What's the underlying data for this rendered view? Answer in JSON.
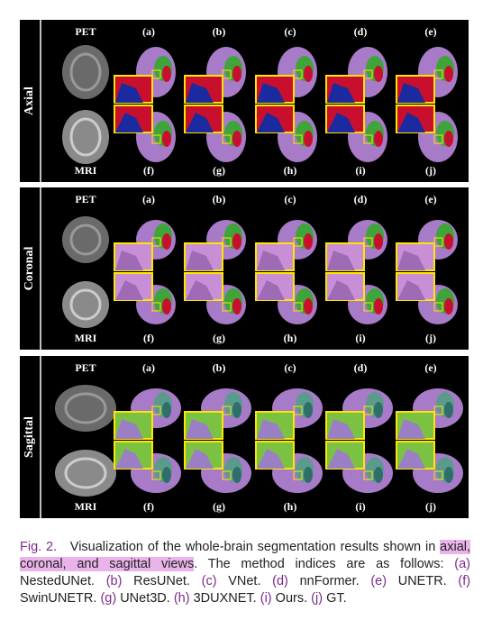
{
  "figure": {
    "panels": [
      {
        "view": "Axial",
        "top_source": "PET",
        "bottom_source": "MRI",
        "top_labels": [
          "(a)",
          "(b)",
          "(c)",
          "(d)",
          "(e)"
        ],
        "bottom_labels": [
          "(f)",
          "(g)",
          "(h)",
          "(i)",
          "(j)"
        ]
      },
      {
        "view": "Coronal",
        "top_source": "PET",
        "bottom_source": "MRI",
        "top_labels": [
          "(a)",
          "(b)",
          "(c)",
          "(d)",
          "(e)"
        ],
        "bottom_labels": [
          "(f)",
          "(g)",
          "(h)",
          "(i)",
          "(j)"
        ]
      },
      {
        "view": "Sagittal",
        "top_source": "PET",
        "bottom_source": "MRI",
        "top_labels": [
          "(a)",
          "(b)",
          "(c)",
          "(d)",
          "(e)"
        ],
        "bottom_labels": [
          "(f)",
          "(g)",
          "(h)",
          "(i)",
          "(j)"
        ]
      }
    ],
    "caption": {
      "label": "Fig. 2.",
      "text_before": "Visualization of the whole-brain segmentation results shown in",
      "highlight": "axial, coronal, and sagittal views",
      "text_after": ". The method indices are as follows:",
      "methods": [
        {
          "index": "(a)",
          "name": "NestedUNet."
        },
        {
          "index": "(b)",
          "name": "ResUNet."
        },
        {
          "index": "(c)",
          "name": "VNet."
        },
        {
          "index": "(d)",
          "name": "nnFormer."
        },
        {
          "index": "(e)",
          "name": "UNETR."
        },
        {
          "index": "(f)",
          "name": "SwinUNETR."
        },
        {
          "index": "(g)",
          "name": "UNet3D."
        },
        {
          "index": "(h)",
          "name": "3DUXNET."
        },
        {
          "index": "(i)",
          "name": "Ours."
        },
        {
          "index": "(j)",
          "name": "GT."
        }
      ]
    }
  }
}
